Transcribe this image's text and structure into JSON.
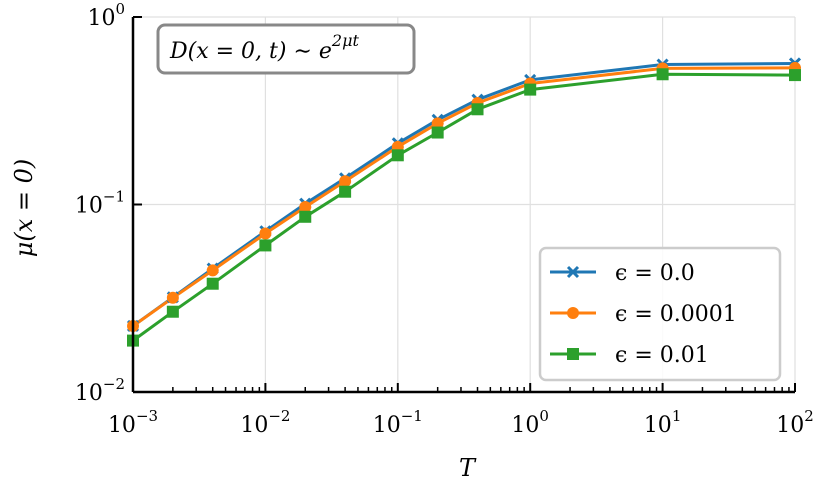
{
  "chart_data": {
    "type": "line",
    "x_scale": "log",
    "y_scale": "log",
    "xlim": [
      0.001,
      100
    ],
    "ylim": [
      0.01,
      1
    ],
    "grid": true,
    "legend_position": "lower-right",
    "xlabel": "T",
    "ylabel": "μ(x = 0)",
    "annotation": "D(x = 0, t) ∼ e^{2μt}",
    "annotation_parts": {
      "main": "D(x = 0, t) ∼ e",
      "exp": "2μt"
    },
    "x_ticks": [
      {
        "value": 0.001,
        "base": "10",
        "exp": "−3"
      },
      {
        "value": 0.01,
        "base": "10",
        "exp": "−2"
      },
      {
        "value": 0.1,
        "base": "10",
        "exp": "−1"
      },
      {
        "value": 1,
        "base": "10",
        "exp": "0"
      },
      {
        "value": 10,
        "base": "10",
        "exp": "1"
      },
      {
        "value": 100,
        "base": "10",
        "exp": "2"
      }
    ],
    "y_ticks": [
      {
        "value": 0.01,
        "base": "10",
        "exp": "−2"
      },
      {
        "value": 0.1,
        "base": "10",
        "exp": "−1"
      },
      {
        "value": 1,
        "base": "10",
        "exp": "0"
      }
    ],
    "x": [
      0.001,
      0.002,
      0.004,
      0.01,
      0.02,
      0.04,
      0.1,
      0.2,
      0.4,
      1,
      10,
      100
    ],
    "series": [
      {
        "name": "ϵ = 0.0",
        "color": "#1f77b4",
        "marker": "x",
        "values": [
          0.0225,
          0.032,
          0.0455,
          0.072,
          0.101,
          0.138,
          0.212,
          0.283,
          0.362,
          0.462,
          0.558,
          0.565
        ]
      },
      {
        "name": "ϵ = 0.0001",
        "color": "#ff7f0e",
        "marker": "circle",
        "values": [
          0.0225,
          0.0318,
          0.0445,
          0.07,
          0.097,
          0.133,
          0.203,
          0.271,
          0.348,
          0.442,
          0.532,
          0.535
        ]
      },
      {
        "name": "ϵ = 0.01",
        "color": "#2ca02c",
        "marker": "square",
        "values": [
          0.0188,
          0.0268,
          0.0378,
          0.0605,
          0.086,
          0.117,
          0.183,
          0.242,
          0.322,
          0.41,
          0.495,
          0.49
        ]
      }
    ]
  }
}
